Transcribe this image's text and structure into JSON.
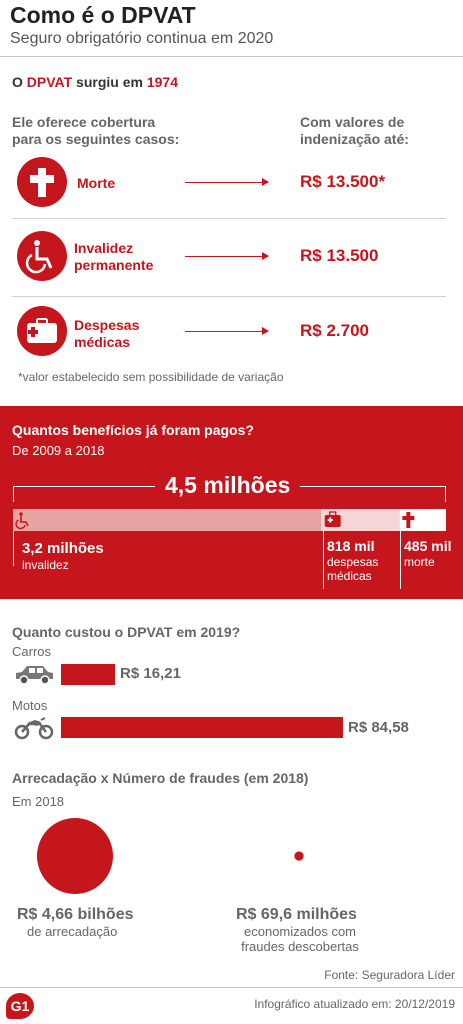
{
  "header": {
    "title": "Como é o DPVAT",
    "subtitle": "Seguro obrigatório continua em 2020"
  },
  "intro": {
    "prefix": "O ",
    "brand": "DPVAT",
    "mid": " surgiu em ",
    "year": "1974"
  },
  "coverage": {
    "left_heading_1": "Ele oferece cobertura",
    "left_heading_2": "para os seguintes casos:",
    "right_heading_1": "Com valores de",
    "right_heading_2": "indenização até:",
    "items": [
      {
        "label_1": "Morte",
        "label_2": "",
        "value": "R$ 13.500*",
        "icon": "cross-icon"
      },
      {
        "label_1": "Invalidez",
        "label_2": "permanente",
        "value": "R$ 13.500",
        "icon": "wheelchair-icon"
      },
      {
        "label_1": "Despesas",
        "label_2": "médicas",
        "value": "R$ 2.700",
        "icon": "medical-kit-icon"
      }
    ],
    "footnote": "*valor estabelecido sem possibilidade de variação"
  },
  "benefits": {
    "title": "Quantos benefícios já foram pagos?",
    "period": "De 2009 a 2018",
    "total": "4,5 milhões",
    "colors": {
      "background": "#c4161c",
      "invalidez": "#e8a3a3",
      "despesas": "#f4d6d6",
      "morte": "#ffffff"
    },
    "segments": [
      {
        "value": "3,2 milhões",
        "label_1": "invalidez",
        "label_2": "",
        "icon": "wheelchair-icon"
      },
      {
        "value": "818 mil",
        "label_1": "despesas",
        "label_2": "médicas",
        "icon": "medical-kit-icon"
      },
      {
        "value": "485 mil",
        "label_1": "morte",
        "label_2": "",
        "icon": "cross-icon"
      }
    ]
  },
  "cost": {
    "title": "Quanto custou o DPVAT em 2019?",
    "items": [
      {
        "label": "Carros",
        "value": "R$ 16,21",
        "icon": "car-icon"
      },
      {
        "label": "Motos",
        "value": "R$ 84,58",
        "icon": "motorcycle-icon"
      }
    ]
  },
  "chart_data": [
    {
      "type": "bar",
      "title": "Quantos benefícios já foram pagos?",
      "subtitle": "De 2009 a 2018",
      "categories": [
        "invalidez",
        "despesas médicas",
        "morte"
      ],
      "values": [
        3200000,
        818000,
        485000
      ],
      "total": 4500000
    },
    {
      "type": "bar",
      "title": "Quanto custou o DPVAT em 2019?",
      "categories": [
        "Carros",
        "Motos"
      ],
      "values": [
        16.21,
        84.58
      ]
    },
    {
      "type": "bar",
      "title": "Arrecadação x Número de fraudes (em 2018)",
      "subtitle": "Em 2018",
      "categories": [
        "de arrecadação",
        "economizados com fraudes descobertas"
      ],
      "values": [
        4660000000,
        69600000
      ]
    }
  ],
  "fraud": {
    "title": "Arrecadação x Número de fraudes (em 2018)",
    "year": "Em 2018",
    "items": [
      {
        "value": "R$ 4,66 bilhões",
        "label_1": "de arrecadação",
        "label_2": ""
      },
      {
        "value": "R$ 69,6 milhões",
        "label_1": "economizados com",
        "label_2": "fraudes descobertas"
      }
    ]
  },
  "footer": {
    "source": "Fonte: Seguradora Líder",
    "logo": "G1",
    "updated": "Infográfico atualizado em: 20/12/2019"
  }
}
